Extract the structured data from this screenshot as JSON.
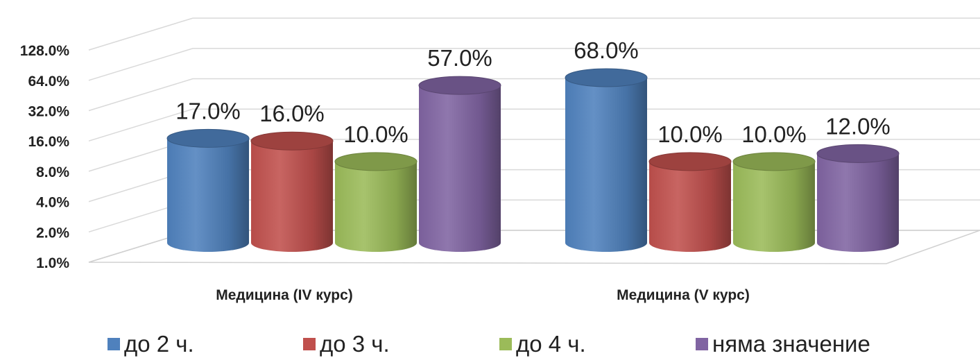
{
  "chart_data": {
    "type": "bar",
    "style": "3d-cylinder",
    "y_scale": "log2",
    "ylim": [
      1.0,
      128.0
    ],
    "y_ticks": [
      "1.0%",
      "2.0%",
      "4.0%",
      "8.0%",
      "16.0%",
      "32.0%",
      "64.0%",
      "128.0%"
    ],
    "grid": true,
    "legend_position": "bottom",
    "categories": [
      "Медицина (IV курс)",
      "Медицина (V курс)"
    ],
    "series": [
      {
        "name": "до 2 ч.",
        "color": "#4f81bd",
        "values": [
          17.0,
          68.0
        ],
        "labels": [
          "17.0%",
          "68.0%"
        ]
      },
      {
        "name": "до 3 ч.",
        "color": "#c0504d",
        "values": [
          16.0,
          10.0
        ],
        "labels": [
          "16.0%",
          "10.0%"
        ]
      },
      {
        "name": "до 4 ч.",
        "color": "#9bbb59",
        "values": [
          10.0,
          10.0
        ],
        "labels": [
          "10.0%",
          "10.0%"
        ]
      },
      {
        "name": "няма значение",
        "color": "#8064a2",
        "values": [
          57.0,
          12.0
        ],
        "labels": [
          "57.0%",
          "12.0%"
        ]
      }
    ]
  }
}
